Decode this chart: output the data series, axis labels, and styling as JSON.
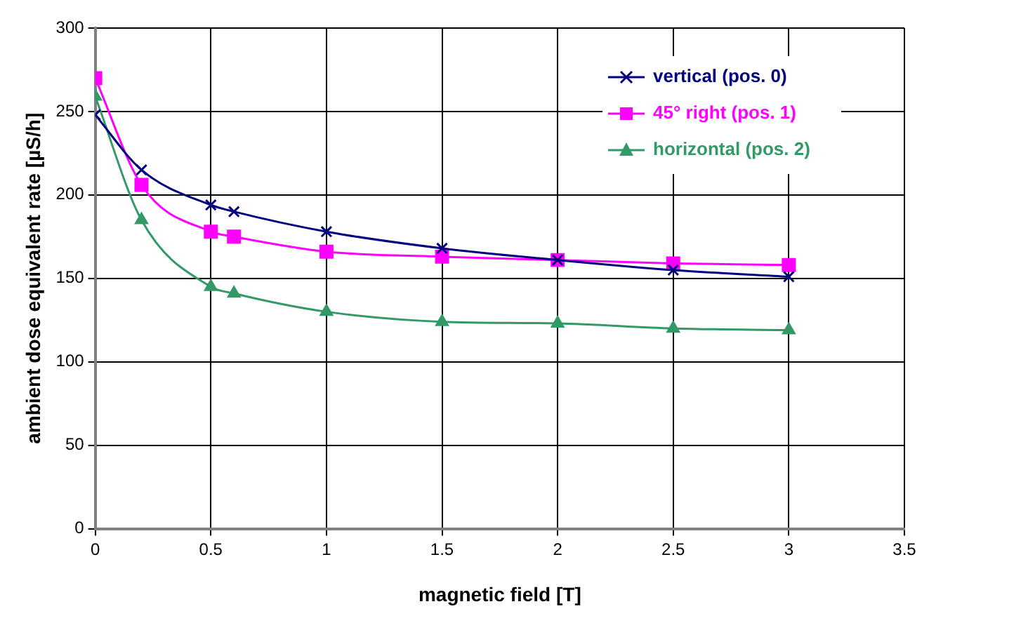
{
  "chart_data": {
    "type": "line",
    "xlabel": "magnetic field [T]",
    "ylabel": "ambient dose equivalent rate [µS/h]",
    "xlim": [
      0,
      3.5
    ],
    "xticks": [
      0,
      0.5,
      1,
      1.5,
      2,
      2.5,
      3,
      3.5
    ],
    "ylim": [
      0,
      300
    ],
    "yticks": [
      0,
      50,
      100,
      150,
      200,
      250,
      300
    ],
    "grid": true,
    "legend": "top right",
    "line_style": "solid",
    "x": [
      0,
      0.2,
      0.5,
      0.6,
      1,
      1.5,
      2,
      2.5,
      3
    ],
    "series": [
      {
        "name": "vertical (pos. 0)",
        "color": "#000080",
        "marker": "cross",
        "values": [
          248,
          215,
          194,
          190,
          178,
          168,
          161,
          155,
          151
        ]
      },
      {
        "name": "45° right (pos. 1)",
        "color": "#ff00ff",
        "marker": "square",
        "values": [
          270,
          206,
          178,
          175,
          166,
          163,
          161,
          159,
          158
        ]
      },
      {
        "name": "horizontal (pos. 2)",
        "color": "#339966",
        "marker": "triangle",
        "values": [
          259,
          185,
          145,
          141,
          130,
          124,
          123,
          120,
          119
        ]
      }
    ]
  }
}
